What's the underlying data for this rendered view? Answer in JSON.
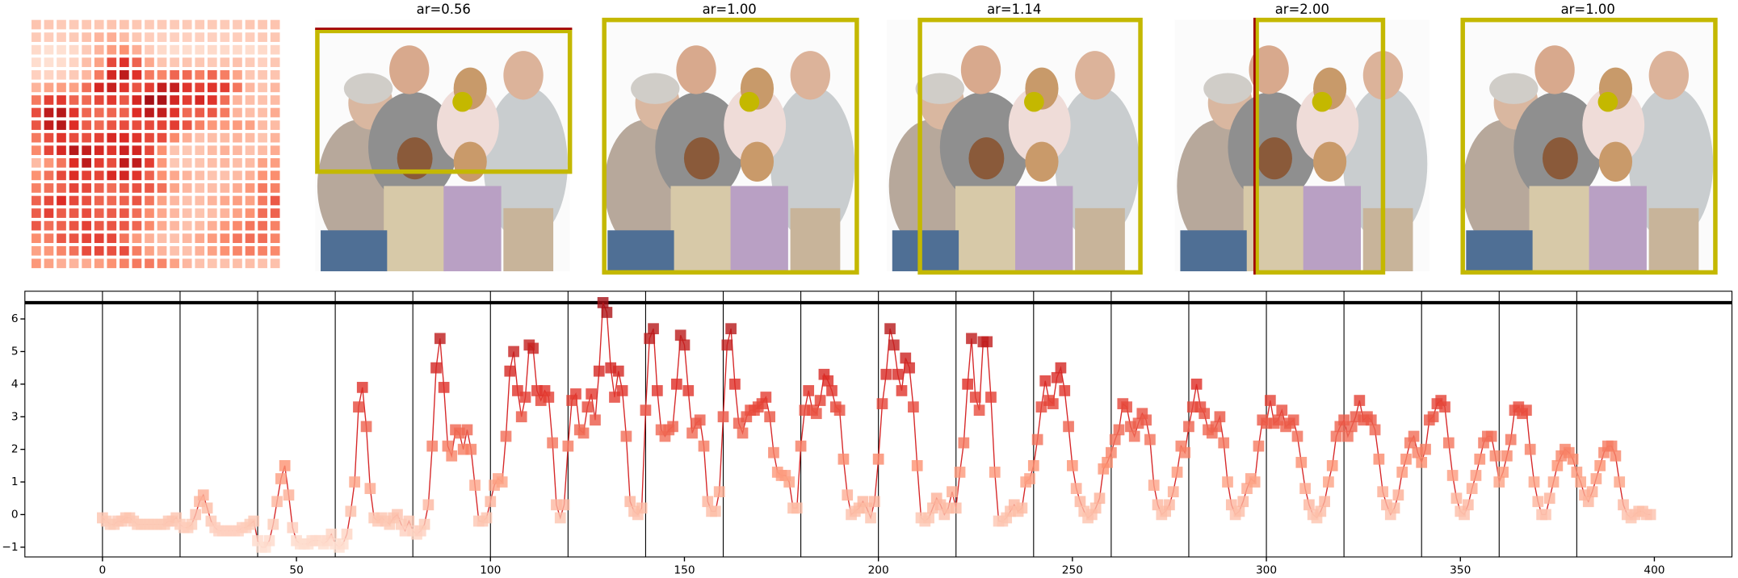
{
  "panels": [
    {
      "title": "ar=0.56"
    },
    {
      "title": "ar=1.00"
    },
    {
      "title": "ar=1.14"
    },
    {
      "title": "ar=2.00"
    },
    {
      "title": "ar=1.00"
    }
  ],
  "chart_data": {
    "type": "line",
    "color": "#d62728",
    "marker": "square",
    "colormap": [
      "#fee0d2",
      "#fc9272",
      "#de2d26",
      "#a50f15"
    ],
    "values": [
      -0.1,
      -0.2,
      -0.3,
      -0.3,
      -0.2,
      -0.2,
      -0.1,
      -0.1,
      -0.2,
      -0.3,
      -0.3,
      -0.3,
      -0.3,
      -0.3,
      -0.3,
      -0.3,
      -0.3,
      -0.2,
      -0.2,
      -0.1,
      -0.3,
      -0.4,
      -0.4,
      -0.3,
      0.0,
      0.4,
      0.6,
      0.2,
      -0.2,
      -0.4,
      -0.5,
      -0.5,
      -0.5,
      -0.5,
      -0.5,
      -0.5,
      -0.4,
      -0.4,
      -0.3,
      -0.2,
      -0.8,
      -1.0,
      -1.0,
      -0.8,
      -0.3,
      0.4,
      1.1,
      1.5,
      0.6,
      -0.4,
      -0.8,
      -0.9,
      -0.9,
      -0.9,
      -0.8,
      -0.8,
      -0.8,
      -0.9,
      -0.8,
      -0.6,
      -0.9,
      -1.0,
      -0.9,
      -0.6,
      0.1,
      1.0,
      3.3,
      3.9,
      2.7,
      0.8,
      -0.1,
      -0.2,
      -0.1,
      -0.2,
      -0.3,
      -0.1,
      0.0,
      -0.3,
      -0.5,
      -0.2,
      -0.5,
      -0.6,
      -0.5,
      -0.3,
      0.3,
      2.1,
      4.5,
      5.4,
      3.9,
      2.1,
      1.8,
      2.6,
      2.5,
      2.0,
      2.6,
      2.0,
      0.9,
      -0.2,
      -0.2,
      -0.1,
      0.4,
      0.9,
      1.1,
      1.0,
      2.4,
      4.4,
      5.0,
      3.8,
      3.0,
      3.6,
      5.2,
      5.1,
      3.8,
      3.5,
      3.8,
      3.6,
      2.2,
      0.3,
      -0.1,
      0.3,
      2.1,
      3.5,
      3.7,
      2.6,
      2.5,
      3.3,
      3.7,
      2.9,
      4.4,
      6.5,
      6.2,
      4.5,
      3.6,
      4.4,
      3.8,
      2.4,
      0.4,
      0.1,
      0.0,
      0.2,
      3.2,
      5.4,
      5.7,
      3.8,
      2.6,
      2.4,
      2.6,
      2.7,
      4.0,
      5.5,
      5.2,
      3.8,
      2.5,
      2.8,
      2.9,
      2.1,
      0.4,
      0.1,
      0.1,
      0.7,
      3.0,
      5.2,
      5.7,
      4.0,
      2.8,
      2.5,
      3.0,
      3.2,
      3.2,
      3.3,
      3.4,
      3.6,
      3.0,
      1.9,
      1.3,
      1.2,
      1.2,
      1.0,
      0.2,
      0.2,
      2.1,
      3.2,
      3.8,
      3.2,
      3.1,
      3.5,
      4.3,
      4.1,
      3.8,
      3.3,
      3.2,
      1.7,
      0.6,
      0.0,
      0.1,
      0.2,
      0.4,
      0.2,
      -0.1,
      0.4,
      1.7,
      3.4,
      4.3,
      5.7,
      5.2,
      4.3,
      3.8,
      4.8,
      4.5,
      3.3,
      1.5,
      -0.1,
      -0.2,
      -0.1,
      0.2,
      0.5,
      0.3,
      0.0,
      0.2,
      0.7,
      0.2,
      1.3,
      2.2,
      4.0,
      5.4,
      3.6,
      3.2,
      5.3,
      5.3,
      3.6,
      1.3,
      -0.2,
      -0.2,
      -0.1,
      0.1,
      0.3,
      0.1,
      0.2,
      1.0,
      1.1,
      1.5,
      2.3,
      3.3,
      4.1,
      3.5,
      3.4,
      4.2,
      4.5,
      3.8,
      2.7,
      1.5,
      0.8,
      0.4,
      0.1,
      -0.1,
      0.0,
      0.2,
      0.5,
      1.4,
      1.6,
      1.9,
      2.3,
      2.6,
      3.4,
      3.3,
      2.7,
      2.4,
      2.8,
      3.1,
      2.9,
      2.3,
      0.9,
      0.3,
      0.0,
      0.1,
      0.3,
      0.7,
      1.3,
      2.1,
      1.9,
      2.7,
      3.3,
      4.0,
      3.3,
      3.1,
      2.6,
      2.5,
      2.7,
      3.0,
      2.2,
      1.0,
      0.3,
      0.0,
      0.1,
      0.4,
      0.8,
      1.1,
      1.0,
      2.1,
      2.9,
      2.8,
      3.5,
      2.8,
      2.9,
      3.2,
      2.7,
      2.8,
      2.9,
      2.4,
      1.6,
      0.8,
      0.3,
      0.0,
      -0.1,
      0.1,
      0.4,
      1.0,
      1.5,
      2.4,
      2.7,
      2.9,
      2.4,
      2.7,
      3.0,
      3.5,
      2.9,
      3.0,
      2.9,
      2.6,
      1.7,
      0.7,
      0.3,
      0.0,
      0.2,
      0.6,
      1.3,
      1.7,
      2.2,
      2.4,
      1.9,
      1.6,
      2.0,
      2.9,
      3.0,
      3.4,
      3.5,
      3.3,
      2.2,
      1.2,
      0.5,
      0.1,
      0.0,
      0.3,
      0.8,
      1.2,
      1.7,
      2.2,
      2.4,
      2.4,
      1.8,
      1.0,
      1.3,
      1.8,
      2.3,
      3.2,
      3.3,
      3.1,
      3.2,
      2.0,
      1.0,
      0.4,
      0.0,
      0.0,
      0.5,
      1.0,
      1.5,
      1.8,
      2.0,
      1.9,
      1.7,
      1.3,
      1.0,
      0.6,
      0.4,
      0.7,
      1.1,
      1.5,
      1.9,
      2.1,
      2.1,
      1.8,
      1.0,
      0.3,
      0.0,
      -0.1,
      0.0,
      0.1,
      0.1,
      0.0,
      0.0
    ],
    "xlim": [
      -20,
      420
    ],
    "ylim": [
      -1.3,
      6.85
    ],
    "xticks": [
      0,
      50,
      100,
      150,
      200,
      250,
      300,
      350,
      400
    ],
    "yticks": [
      {
        "value": -1,
        "label": "−1"
      },
      0,
      1,
      2,
      3,
      4,
      5,
      6
    ],
    "vlines": [
      0,
      20,
      40,
      60,
      80,
      100,
      120,
      140,
      160,
      180,
      200,
      220,
      240,
      260,
      280,
      300,
      320,
      340,
      360,
      380
    ],
    "hline": 6.5
  }
}
